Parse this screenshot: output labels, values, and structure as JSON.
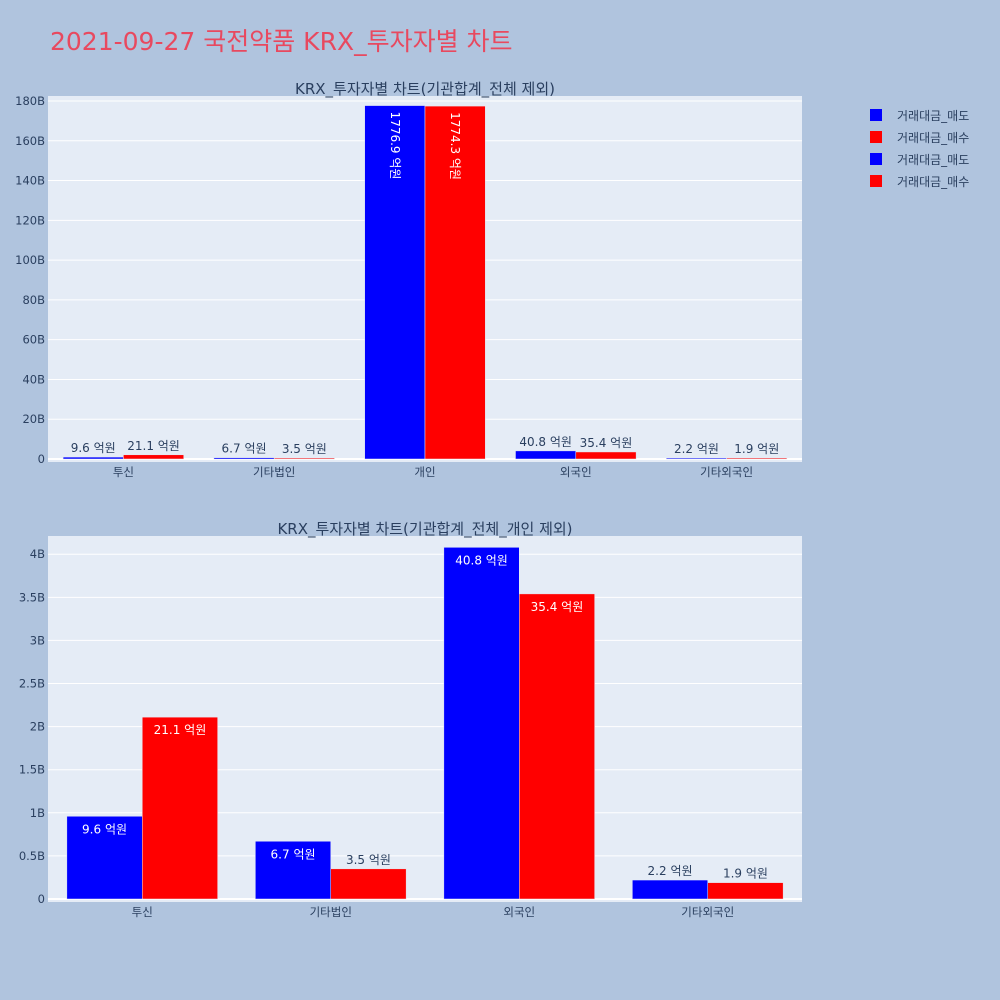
{
  "page_title": "2021-09-27 국전약품 KRX_투자자별 차트",
  "legend": [
    {
      "label": "거래대금_매도",
      "color": "#0000ff"
    },
    {
      "label": "거래대금_매수",
      "color": "#ff0000"
    },
    {
      "label": "거래대금_매도",
      "color": "#0000ff"
    },
    {
      "label": "거래대금_매수",
      "color": "#ff0000"
    }
  ],
  "chart_data": [
    {
      "type": "bar",
      "title": "KRX_투자자별 차트(기관합계_전체 제외)",
      "categories": [
        "투신",
        "기타법인",
        "개인",
        "외국인",
        "기타외국인"
      ],
      "series": [
        {
          "name": "거래대금_매도",
          "color": "#0000ff",
          "values": [
            960000000,
            670000000,
            177690000000,
            4080000000,
            220000000
          ],
          "labels": [
            "9.6 억원",
            "6.7 억원",
            "1776.9 억원",
            "40.8 억원",
            "2.2 억원"
          ]
        },
        {
          "name": "거래대금_매수",
          "color": "#ff0000",
          "values": [
            2110000000,
            350000000,
            177430000000,
            3540000000,
            190000000
          ],
          "labels": [
            "21.1 억원",
            "3.5 억원",
            "1774.3 억원",
            "35.4 억원",
            "1.9 억원"
          ]
        }
      ],
      "yticks": [
        0,
        20000000000,
        40000000000,
        60000000000,
        80000000000,
        100000000000,
        120000000000,
        140000000000,
        160000000000,
        180000000000
      ],
      "ytick_labels": [
        "0",
        "20B",
        "40B",
        "60B",
        "80B",
        "100B",
        "120B",
        "140B",
        "160B",
        "180B"
      ],
      "ylim": [
        0,
        182000000000
      ],
      "grid": true
    },
    {
      "type": "bar",
      "title": "KRX_투자자별 차트(기관합계_전체_개인 제외)",
      "categories": [
        "투신",
        "기타법인",
        "외국인",
        "기타외국인"
      ],
      "series": [
        {
          "name": "거래대금_매도",
          "color": "#0000ff",
          "values": [
            960000000,
            670000000,
            4080000000,
            220000000
          ],
          "labels": [
            "9.6 억원",
            "6.7 억원",
            "40.8 억원",
            "2.2 억원"
          ]
        },
        {
          "name": "거래대금_매수",
          "color": "#ff0000",
          "values": [
            2110000000,
            350000000,
            3540000000,
            190000000
          ],
          "labels": [
            "21.1 억원",
            "3.5 억원",
            "35.4 억원",
            "1.9 억원"
          ]
        }
      ],
      "yticks": [
        0,
        500000000,
        1000000000,
        1500000000,
        2000000000,
        2500000000,
        3000000000,
        3500000000,
        4000000000
      ],
      "ytick_labels": [
        "0",
        "0.5B",
        "1B",
        "1.5B",
        "2B",
        "2.5B",
        "3B",
        "3.5B",
        "4B"
      ],
      "ylim": [
        0,
        4200000000
      ],
      "grid": true
    }
  ]
}
